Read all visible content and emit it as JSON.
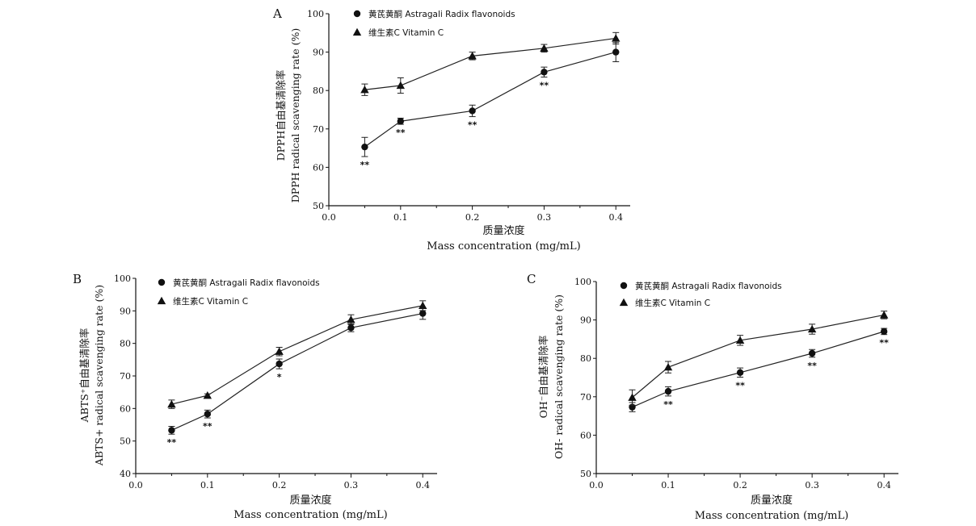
{
  "chart_data": [
    {
      "panel": "A",
      "type": "line",
      "x": [
        0.05,
        0.1,
        0.2,
        0.3,
        0.4
      ],
      "xlim": [
        0.0,
        0.42
      ],
      "ylim": [
        50,
        100
      ],
      "xticks": [
        "0.0",
        "0.1",
        "0.2",
        "0.3",
        "0.4"
      ],
      "yticks": [
        "50",
        "60",
        "70",
        "80",
        "90",
        "100"
      ],
      "xlabel_cn": "质量浓度",
      "xlabel_en": "Mass concentration (mg/mL)",
      "ylabel_cn": "DPPH自由基清除率",
      "ylabel_en": "DPPH radical scavenging rate (%)",
      "series": [
        {
          "name_cn": "黄芪黄酮",
          "name_en": "Astragali Radix flavonoids",
          "marker": "circle",
          "values": [
            65.3,
            72.0,
            74.7,
            84.8,
            90.0
          ],
          "errors": [
            2.5,
            0.8,
            1.5,
            1.3,
            2.5
          ],
          "significance": [
            "**",
            "**",
            "**",
            "**",
            ""
          ]
        },
        {
          "name_cn": "维生素C",
          "name_en": "Vitamin C",
          "marker": "triangle",
          "values": [
            80.2,
            81.3,
            89.0,
            91.0,
            93.6
          ],
          "errors": [
            1.5,
            2.0,
            1.0,
            1.0,
            1.5
          ],
          "significance": [
            "",
            "",
            "",
            "",
            ""
          ]
        }
      ]
    },
    {
      "panel": "B",
      "type": "line",
      "x": [
        0.05,
        0.1,
        0.2,
        0.3,
        0.4
      ],
      "xlim": [
        0.0,
        0.42
      ],
      "ylim": [
        40,
        100
      ],
      "xticks": [
        "0.0",
        "0.1",
        "0.2",
        "0.3",
        "0.4"
      ],
      "yticks": [
        "40",
        "50",
        "60",
        "70",
        "80",
        "90",
        "100"
      ],
      "xlabel_cn": "质量浓度",
      "xlabel_en": "Mass concentration (mg/mL)",
      "ylabel_cn": "ABTS⁺自由基清除率",
      "ylabel_en": "ABTS+ radical scavenging rate (%)",
      "series": [
        {
          "name_cn": "黄芪黄酮",
          "name_en": "Astragali Radix flavonoids",
          "marker": "circle",
          "values": [
            53.3,
            58.3,
            73.7,
            84.8,
            89.2
          ],
          "errors": [
            1.2,
            1.2,
            1.5,
            1.2,
            1.8
          ],
          "significance": [
            "**",
            "**",
            "*",
            "",
            ""
          ]
        },
        {
          "name_cn": "维生素C",
          "name_en": "Vitamin C",
          "marker": "triangle",
          "values": [
            61.3,
            64.0,
            77.5,
            87.3,
            91.6
          ],
          "errors": [
            1.3,
            0.5,
            1.3,
            1.5,
            1.5
          ],
          "significance": [
            "",
            "",
            "",
            "",
            ""
          ]
        }
      ]
    },
    {
      "panel": "C",
      "type": "line",
      "x": [
        0.05,
        0.1,
        0.2,
        0.3,
        0.4
      ],
      "xlim": [
        0.0,
        0.42
      ],
      "ylim": [
        50,
        100
      ],
      "xticks": [
        "0.0",
        "0.1",
        "0.2",
        "0.3",
        "0.4"
      ],
      "yticks": [
        "50",
        "60",
        "70",
        "80",
        "90",
        "100"
      ],
      "xlabel_cn": "质量浓度",
      "xlabel_en": "Mass concentration (mg/mL)",
      "ylabel_cn": "OH⁻自由基清除率",
      "ylabel_en": "OH- radical scavenging rate (%)",
      "series": [
        {
          "name_cn": "黄芪黄酮",
          "name_en": "Astragali Radix flavonoids",
          "marker": "circle",
          "values": [
            67.3,
            71.4,
            76.3,
            81.3,
            87.0
          ],
          "errors": [
            1.2,
            1.2,
            1.2,
            1.0,
            0.8
          ],
          "significance": [
            "",
            "**",
            "**",
            "**",
            "**"
          ]
        },
        {
          "name_cn": "维生素C",
          "name_en": "Vitamin C",
          "marker": "triangle",
          "values": [
            69.8,
            77.7,
            84.7,
            87.6,
            91.3
          ],
          "errors": [
            2.0,
            1.5,
            1.3,
            1.3,
            1.0
          ],
          "significance": [
            "",
            "",
            "",
            "",
            ""
          ]
        }
      ]
    }
  ]
}
